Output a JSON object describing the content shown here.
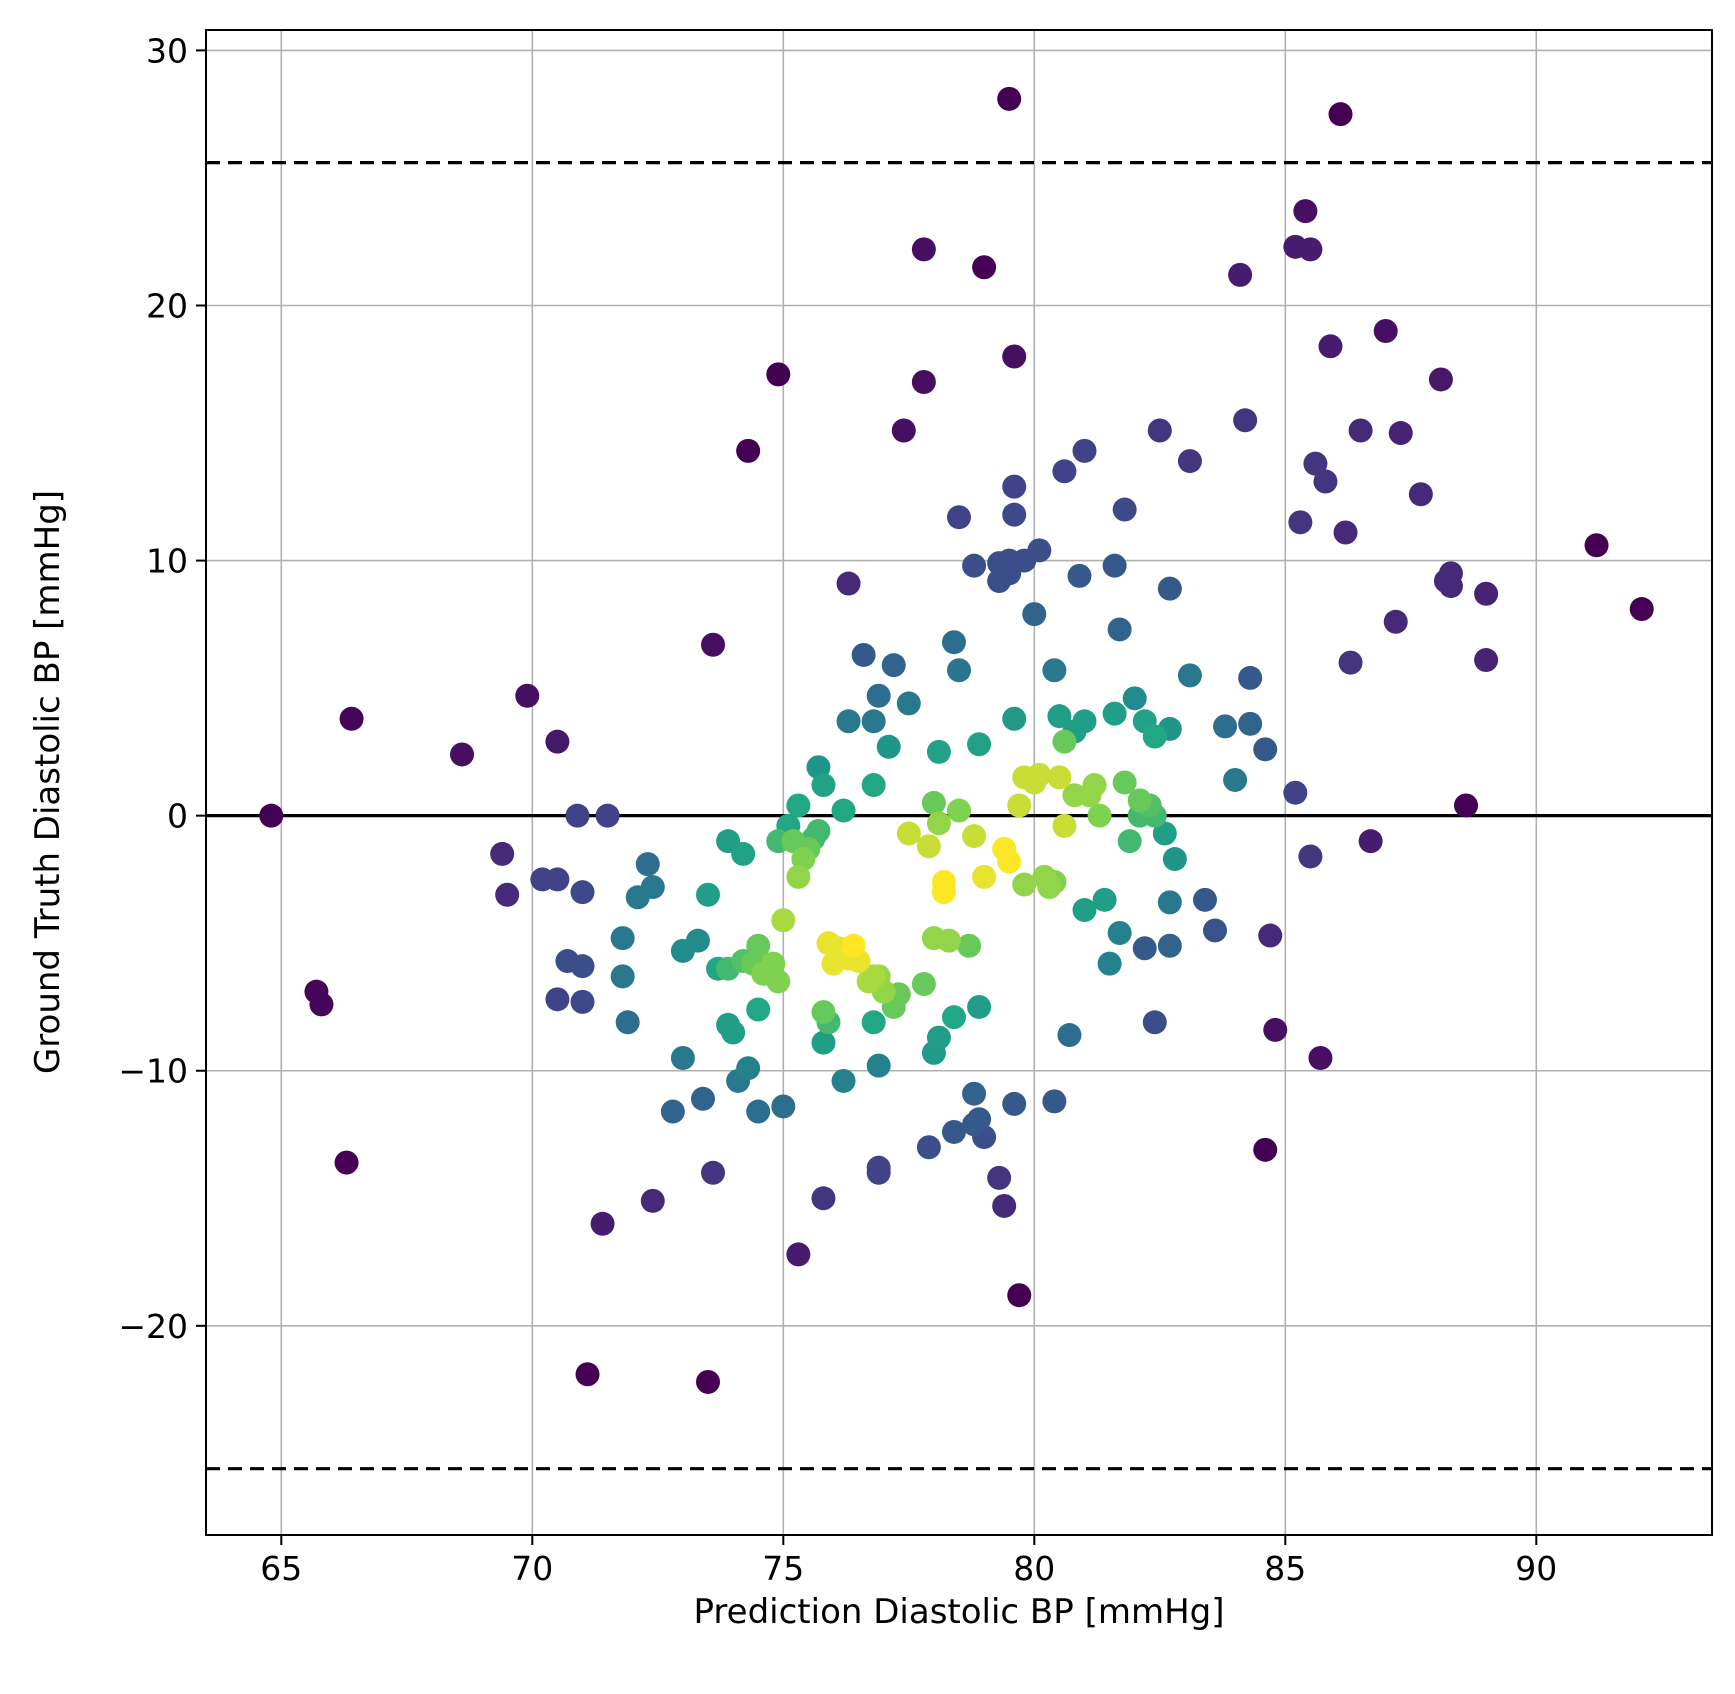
{
  "chart_data": {
    "type": "scatter",
    "title": "",
    "xlabel": "Prediction Diastolic BP [mmHg]",
    "ylabel": "Ground Truth Diastolic BP [mmHg]",
    "xlim": [
      63.5,
      93.5
    ],
    "ylim": [
      -28.2,
      30.8
    ],
    "xticks": [
      65,
      70,
      75,
      80,
      85,
      90
    ],
    "yticks": [
      -20,
      -10,
      0,
      10,
      20,
      30
    ],
    "xtick_labels": [
      "65",
      "70",
      "75",
      "80",
      "85",
      "90"
    ],
    "ytick_labels": [
      "−20",
      "−10",
      "0",
      "10",
      "20",
      "30"
    ],
    "grid": true,
    "legend": "none",
    "colormap": "viridis (density)",
    "reference_lines": [
      {
        "y": 0,
        "style": "solid",
        "color": "#000000"
      },
      {
        "y": 25.6,
        "style": "dashed",
        "color": "#000000"
      },
      {
        "y": -25.6,
        "style": "dashed",
        "color": "#000000"
      }
    ],
    "points": [
      {
        "x": 64.8,
        "y": 0.0,
        "c": 0.0
      },
      {
        "x": 65.7,
        "y": -6.9,
        "c": 0.02
      },
      {
        "x": 65.8,
        "y": -7.4,
        "c": 0.02
      },
      {
        "x": 66.3,
        "y": -13.6,
        "c": 0.0
      },
      {
        "x": 66.4,
        "y": 3.8,
        "c": 0.02
      },
      {
        "x": 68.6,
        "y": 2.4,
        "c": 0.05
      },
      {
        "x": 69.4,
        "y": -1.5,
        "c": 0.15
      },
      {
        "x": 69.5,
        "y": -3.1,
        "c": 0.15
      },
      {
        "x": 69.9,
        "y": 4.7,
        "c": 0.05
      },
      {
        "x": 70.2,
        "y": -2.5,
        "c": 0.25
      },
      {
        "x": 70.5,
        "y": -2.5,
        "c": 0.25
      },
      {
        "x": 70.5,
        "y": 2.9,
        "c": 0.08
      },
      {
        "x": 70.5,
        "y": -7.2,
        "c": 0.25
      },
      {
        "x": 70.7,
        "y": -5.7,
        "c": 0.3
      },
      {
        "x": 70.9,
        "y": 0.0,
        "c": 0.25
      },
      {
        "x": 71.0,
        "y": -3.0,
        "c": 0.28
      },
      {
        "x": 71.0,
        "y": -5.9,
        "c": 0.3
      },
      {
        "x": 71.0,
        "y": -7.3,
        "c": 0.28
      },
      {
        "x": 71.1,
        "y": -21.9,
        "c": 0.0
      },
      {
        "x": 71.4,
        "y": -16.0,
        "c": 0.1
      },
      {
        "x": 71.5,
        "y": 0.0,
        "c": 0.25
      },
      {
        "x": 71.8,
        "y": -4.8,
        "c": 0.5
      },
      {
        "x": 71.8,
        "y": -6.3,
        "c": 0.5
      },
      {
        "x": 71.9,
        "y": -8.1,
        "c": 0.45
      },
      {
        "x": 72.1,
        "y": -3.2,
        "c": 0.5
      },
      {
        "x": 72.3,
        "y": -1.9,
        "c": 0.45
      },
      {
        "x": 72.4,
        "y": -2.8,
        "c": 0.5
      },
      {
        "x": 72.4,
        "y": -15.1,
        "c": 0.15
      },
      {
        "x": 72.8,
        "y": -11.6,
        "c": 0.4
      },
      {
        "x": 73.0,
        "y": -5.3,
        "c": 0.6
      },
      {
        "x": 73.0,
        "y": -9.5,
        "c": 0.5
      },
      {
        "x": 73.3,
        "y": -4.9,
        "c": 0.6
      },
      {
        "x": 73.4,
        "y": -11.1,
        "c": 0.4
      },
      {
        "x": 73.5,
        "y": -22.2,
        "c": 0.0
      },
      {
        "x": 73.5,
        "y": -3.1,
        "c": 0.7
      },
      {
        "x": 73.6,
        "y": -14.0,
        "c": 0.2
      },
      {
        "x": 73.6,
        "y": 6.7,
        "c": 0.05
      },
      {
        "x": 73.7,
        "y": -6.0,
        "c": 0.75
      },
      {
        "x": 73.9,
        "y": -6.0,
        "c": 0.8
      },
      {
        "x": 73.9,
        "y": -1.0,
        "c": 0.7
      },
      {
        "x": 73.9,
        "y": -8.2,
        "c": 0.7
      },
      {
        "x": 74.0,
        "y": -8.5,
        "c": 0.7
      },
      {
        "x": 74.1,
        "y": -10.4,
        "c": 0.5
      },
      {
        "x": 74.2,
        "y": -5.7,
        "c": 0.82
      },
      {
        "x": 74.2,
        "y": -1.5,
        "c": 0.72
      },
      {
        "x": 74.3,
        "y": -9.9,
        "c": 0.55
      },
      {
        "x": 74.3,
        "y": 14.3,
        "c": 0.0
      },
      {
        "x": 74.4,
        "y": -5.8,
        "c": 0.85
      },
      {
        "x": 74.5,
        "y": -5.1,
        "c": 0.85
      },
      {
        "x": 74.5,
        "y": -7.6,
        "c": 0.75
      },
      {
        "x": 74.5,
        "y": -11.6,
        "c": 0.45
      },
      {
        "x": 74.6,
        "y": -6.2,
        "c": 0.88
      },
      {
        "x": 74.7,
        "y": -6.2,
        "c": 0.88
      },
      {
        "x": 74.8,
        "y": -5.8,
        "c": 0.88
      },
      {
        "x": 74.9,
        "y": -6.5,
        "c": 0.88
      },
      {
        "x": 74.9,
        "y": -1.0,
        "c": 0.8
      },
      {
        "x": 74.9,
        "y": 17.3,
        "c": 0.0
      },
      {
        "x": 75.0,
        "y": -4.1,
        "c": 0.92
      },
      {
        "x": 75.0,
        "y": -11.4,
        "c": 0.45
      },
      {
        "x": 75.1,
        "y": -0.4,
        "c": 0.75
      },
      {
        "x": 75.2,
        "y": -1.0,
        "c": 0.85
      },
      {
        "x": 75.3,
        "y": -2.4,
        "c": 0.9
      },
      {
        "x": 75.3,
        "y": 0.4,
        "c": 0.75
      },
      {
        "x": 75.3,
        "y": -17.2,
        "c": 0.1
      },
      {
        "x": 75.4,
        "y": -1.7,
        "c": 0.88
      },
      {
        "x": 75.5,
        "y": -1.3,
        "c": 0.85
      },
      {
        "x": 75.6,
        "y": -0.9,
        "c": 0.8
      },
      {
        "x": 75.7,
        "y": 1.9,
        "c": 0.65
      },
      {
        "x": 75.7,
        "y": -0.6,
        "c": 0.8
      },
      {
        "x": 75.8,
        "y": -7.7,
        "c": 0.85
      },
      {
        "x": 75.8,
        "y": -8.9,
        "c": 0.7
      },
      {
        "x": 75.8,
        "y": -15.0,
        "c": 0.2
      },
      {
        "x": 75.8,
        "y": 1.2,
        "c": 0.72
      },
      {
        "x": 75.9,
        "y": -5.0,
        "c": 0.98
      },
      {
        "x": 75.9,
        "y": -8.1,
        "c": 0.8
      },
      {
        "x": 76.0,
        "y": -5.8,
        "c": 0.98
      },
      {
        "x": 76.1,
        "y": -5.2,
        "c": 0.98
      },
      {
        "x": 76.2,
        "y": -10.4,
        "c": 0.55
      },
      {
        "x": 76.2,
        "y": 0.2,
        "c": 0.75
      },
      {
        "x": 76.3,
        "y": -5.6,
        "c": 0.98
      },
      {
        "x": 76.3,
        "y": 3.7,
        "c": 0.5
      },
      {
        "x": 76.3,
        "y": 9.1,
        "c": 0.15
      },
      {
        "x": 76.4,
        "y": -5.1,
        "c": 1.0
      },
      {
        "x": 76.5,
        "y": -5.7,
        "c": 0.98
      },
      {
        "x": 76.6,
        "y": 6.3,
        "c": 0.35
      },
      {
        "x": 76.7,
        "y": -6.5,
        "c": 0.92
      },
      {
        "x": 76.8,
        "y": 1.2,
        "c": 0.75
      },
      {
        "x": 76.8,
        "y": -8.1,
        "c": 0.75
      },
      {
        "x": 76.8,
        "y": 3.7,
        "c": 0.5
      },
      {
        "x": 76.8,
        "y": -6.3,
        "c": 0.92
      },
      {
        "x": 76.9,
        "y": -14.0,
        "c": 0.25
      },
      {
        "x": 76.9,
        "y": -13.8,
        "c": 0.25
      },
      {
        "x": 76.9,
        "y": -9.8,
        "c": 0.55
      },
      {
        "x": 76.9,
        "y": -6.3,
        "c": 0.9
      },
      {
        "x": 76.9,
        "y": 4.7,
        "c": 0.45
      },
      {
        "x": 77.0,
        "y": -6.9,
        "c": 0.9
      },
      {
        "x": 77.1,
        "y": 2.7,
        "c": 0.65
      },
      {
        "x": 77.2,
        "y": 5.9,
        "c": 0.4
      },
      {
        "x": 77.2,
        "y": -7.5,
        "c": 0.85
      },
      {
        "x": 77.3,
        "y": -7.0,
        "c": 0.85
      },
      {
        "x": 77.4,
        "y": 15.1,
        "c": 0.05
      },
      {
        "x": 77.5,
        "y": 4.4,
        "c": 0.5
      },
      {
        "x": 77.5,
        "y": -0.7,
        "c": 0.95
      },
      {
        "x": 77.8,
        "y": 22.2,
        "c": 0.05
      },
      {
        "x": 77.8,
        "y": -6.6,
        "c": 0.85
      },
      {
        "x": 77.8,
        "y": 17.0,
        "c": 0.05
      },
      {
        "x": 77.9,
        "y": -13.0,
        "c": 0.3
      },
      {
        "x": 77.9,
        "y": -1.2,
        "c": 0.95
      },
      {
        "x": 78.0,
        "y": 0.5,
        "c": 0.85
      },
      {
        "x": 78.0,
        "y": -4.8,
        "c": 0.9
      },
      {
        "x": 78.0,
        "y": -9.3,
        "c": 0.68
      },
      {
        "x": 78.1,
        "y": -0.3,
        "c": 0.9
      },
      {
        "x": 78.1,
        "y": -8.7,
        "c": 0.7
      },
      {
        "x": 78.1,
        "y": 2.5,
        "c": 0.72
      },
      {
        "x": 78.2,
        "y": -3.0,
        "c": 1.0
      },
      {
        "x": 78.2,
        "y": -2.6,
        "c": 1.0
      },
      {
        "x": 78.3,
        "y": -4.9,
        "c": 0.9
      },
      {
        "x": 78.4,
        "y": -7.9,
        "c": 0.75
      },
      {
        "x": 78.4,
        "y": 6.8,
        "c": 0.45
      },
      {
        "x": 78.4,
        "y": -12.4,
        "c": 0.35
      },
      {
        "x": 78.5,
        "y": 5.7,
        "c": 0.48
      },
      {
        "x": 78.5,
        "y": 0.2,
        "c": 0.88
      },
      {
        "x": 78.5,
        "y": 11.7,
        "c": 0.25
      },
      {
        "x": 78.7,
        "y": -5.1,
        "c": 0.85
      },
      {
        "x": 78.8,
        "y": -0.8,
        "c": 0.95
      },
      {
        "x": 78.8,
        "y": 9.8,
        "c": 0.3
      },
      {
        "x": 78.8,
        "y": -10.9,
        "c": 0.4
      },
      {
        "x": 78.8,
        "y": -12.1,
        "c": 0.35
      },
      {
        "x": 78.9,
        "y": -11.9,
        "c": 0.35
      },
      {
        "x": 78.9,
        "y": 2.8,
        "c": 0.72
      },
      {
        "x": 78.9,
        "y": -7.5,
        "c": 0.7
      },
      {
        "x": 79.0,
        "y": -12.6,
        "c": 0.3
      },
      {
        "x": 79.0,
        "y": -2.4,
        "c": 0.98
      },
      {
        "x": 79.0,
        "y": 21.5,
        "c": 0.0
      },
      {
        "x": 79.3,
        "y": -14.2,
        "c": 0.2
      },
      {
        "x": 79.3,
        "y": 9.9,
        "c": 0.3
      },
      {
        "x": 79.3,
        "y": 9.2,
        "c": 0.3
      },
      {
        "x": 79.4,
        "y": -1.3,
        "c": 1.0
      },
      {
        "x": 79.4,
        "y": -15.3,
        "c": 0.15
      },
      {
        "x": 79.5,
        "y": 28.1,
        "c": 0.0
      },
      {
        "x": 79.5,
        "y": 10.0,
        "c": 0.3
      },
      {
        "x": 79.5,
        "y": 9.5,
        "c": 0.3
      },
      {
        "x": 79.5,
        "y": -1.8,
        "c": 1.0
      },
      {
        "x": 79.6,
        "y": 12.9,
        "c": 0.25
      },
      {
        "x": 79.6,
        "y": 11.8,
        "c": 0.28
      },
      {
        "x": 79.6,
        "y": 18.0,
        "c": 0.05
      },
      {
        "x": 79.6,
        "y": -11.3,
        "c": 0.35
      },
      {
        "x": 79.6,
        "y": 3.8,
        "c": 0.68
      },
      {
        "x": 79.7,
        "y": 0.4,
        "c": 0.95
      },
      {
        "x": 79.7,
        "y": -18.8,
        "c": 0.0
      },
      {
        "x": 79.8,
        "y": 10.0,
        "c": 0.3
      },
      {
        "x": 79.8,
        "y": -2.7,
        "c": 0.9
      },
      {
        "x": 79.8,
        "y": 1.5,
        "c": 0.95
      },
      {
        "x": 80.0,
        "y": 7.9,
        "c": 0.4
      },
      {
        "x": 80.0,
        "y": 1.3,
        "c": 0.95
      },
      {
        "x": 80.1,
        "y": 10.4,
        "c": 0.3
      },
      {
        "x": 80.1,
        "y": 1.6,
        "c": 0.95
      },
      {
        "x": 80.2,
        "y": -2.4,
        "c": 0.9
      },
      {
        "x": 80.3,
        "y": -2.8,
        "c": 0.9
      },
      {
        "x": 80.4,
        "y": 5.7,
        "c": 0.5
      },
      {
        "x": 80.4,
        "y": -11.2,
        "c": 0.35
      },
      {
        "x": 80.4,
        "y": -2.6,
        "c": 0.88
      },
      {
        "x": 80.5,
        "y": 1.5,
        "c": 0.95
      },
      {
        "x": 80.5,
        "y": 3.9,
        "c": 0.7
      },
      {
        "x": 80.6,
        "y": 13.5,
        "c": 0.25
      },
      {
        "x": 80.6,
        "y": 2.9,
        "c": 0.85
      },
      {
        "x": 80.6,
        "y": -0.4,
        "c": 0.95
      },
      {
        "x": 80.7,
        "y": -8.6,
        "c": 0.45
      },
      {
        "x": 80.8,
        "y": 3.3,
        "c": 0.7
      },
      {
        "x": 80.8,
        "y": 0.8,
        "c": 0.9
      },
      {
        "x": 80.9,
        "y": 9.4,
        "c": 0.35
      },
      {
        "x": 81.0,
        "y": 3.7,
        "c": 0.7
      },
      {
        "x": 81.0,
        "y": -3.7,
        "c": 0.7
      },
      {
        "x": 81.0,
        "y": 14.3,
        "c": 0.25
      },
      {
        "x": 81.1,
        "y": 0.8,
        "c": 0.9
      },
      {
        "x": 81.2,
        "y": 1.2,
        "c": 0.9
      },
      {
        "x": 81.3,
        "y": 0.0,
        "c": 0.88
      },
      {
        "x": 81.4,
        "y": -3.3,
        "c": 0.7
      },
      {
        "x": 81.5,
        "y": -5.8,
        "c": 0.55
      },
      {
        "x": 81.6,
        "y": 4.0,
        "c": 0.7
      },
      {
        "x": 81.6,
        "y": 9.8,
        "c": 0.35
      },
      {
        "x": 81.7,
        "y": -4.6,
        "c": 0.55
      },
      {
        "x": 81.7,
        "y": 7.3,
        "c": 0.4
      },
      {
        "x": 81.8,
        "y": 12.0,
        "c": 0.28
      },
      {
        "x": 81.8,
        "y": 1.3,
        "c": 0.85
      },
      {
        "x": 81.9,
        "y": -1.0,
        "c": 0.8
      },
      {
        "x": 82.0,
        "y": 4.6,
        "c": 0.6
      },
      {
        "x": 82.1,
        "y": 0.6,
        "c": 0.85
      },
      {
        "x": 82.1,
        "y": 0.0,
        "c": 0.8
      },
      {
        "x": 82.2,
        "y": -5.2,
        "c": 0.35
      },
      {
        "x": 82.2,
        "y": 3.7,
        "c": 0.72
      },
      {
        "x": 82.3,
        "y": 0.4,
        "c": 0.82
      },
      {
        "x": 82.4,
        "y": -8.1,
        "c": 0.3
      },
      {
        "x": 82.4,
        "y": 3.1,
        "c": 0.75
      },
      {
        "x": 82.4,
        "y": 0.0,
        "c": 0.8
      },
      {
        "x": 82.5,
        "y": 15.1,
        "c": 0.2
      },
      {
        "x": 82.6,
        "y": -0.7,
        "c": 0.7
      },
      {
        "x": 82.7,
        "y": -3.4,
        "c": 0.5
      },
      {
        "x": 82.7,
        "y": 8.9,
        "c": 0.35
      },
      {
        "x": 82.7,
        "y": 3.4,
        "c": 0.65
      },
      {
        "x": 82.7,
        "y": -5.1,
        "c": 0.4
      },
      {
        "x": 82.8,
        "y": -1.7,
        "c": 0.65
      },
      {
        "x": 83.1,
        "y": 5.5,
        "c": 0.5
      },
      {
        "x": 83.1,
        "y": 13.9,
        "c": 0.2
      },
      {
        "x": 83.4,
        "y": -3.3,
        "c": 0.35
      },
      {
        "x": 83.6,
        "y": -4.5,
        "c": 0.32
      },
      {
        "x": 83.8,
        "y": 3.5,
        "c": 0.45
      },
      {
        "x": 84.0,
        "y": 1.4,
        "c": 0.5
      },
      {
        "x": 84.1,
        "y": 21.2,
        "c": 0.1
      },
      {
        "x": 84.2,
        "y": 15.5,
        "c": 0.2
      },
      {
        "x": 84.3,
        "y": 5.4,
        "c": 0.35
      },
      {
        "x": 84.3,
        "y": 3.6,
        "c": 0.4
      },
      {
        "x": 84.6,
        "y": 2.6,
        "c": 0.35
      },
      {
        "x": 84.6,
        "y": -13.1,
        "c": 0.0
      },
      {
        "x": 84.7,
        "y": -4.7,
        "c": 0.15
      },
      {
        "x": 84.8,
        "y": -8.4,
        "c": 0.05
      },
      {
        "x": 85.2,
        "y": 0.9,
        "c": 0.25
      },
      {
        "x": 85.2,
        "y": 22.3,
        "c": 0.1
      },
      {
        "x": 85.3,
        "y": 11.5,
        "c": 0.2
      },
      {
        "x": 85.4,
        "y": 23.7,
        "c": 0.05
      },
      {
        "x": 85.5,
        "y": -1.6,
        "c": 0.2
      },
      {
        "x": 85.5,
        "y": 22.2,
        "c": 0.1
      },
      {
        "x": 85.6,
        "y": 13.8,
        "c": 0.2
      },
      {
        "x": 85.7,
        "y": -9.5,
        "c": 0.05
      },
      {
        "x": 85.8,
        "y": 13.1,
        "c": 0.2
      },
      {
        "x": 85.9,
        "y": 18.4,
        "c": 0.1
      },
      {
        "x": 86.1,
        "y": 27.5,
        "c": 0.0
      },
      {
        "x": 86.2,
        "y": 11.1,
        "c": 0.15
      },
      {
        "x": 86.3,
        "y": 6.0,
        "c": 0.2
      },
      {
        "x": 86.5,
        "y": 15.1,
        "c": 0.15
      },
      {
        "x": 86.7,
        "y": -1.0,
        "c": 0.1
      },
      {
        "x": 87.0,
        "y": 19.0,
        "c": 0.05
      },
      {
        "x": 87.2,
        "y": 7.6,
        "c": 0.15
      },
      {
        "x": 87.3,
        "y": 15.0,
        "c": 0.12
      },
      {
        "x": 87.7,
        "y": 12.6,
        "c": 0.15
      },
      {
        "x": 88.1,
        "y": 17.1,
        "c": 0.08
      },
      {
        "x": 88.2,
        "y": 9.2,
        "c": 0.15
      },
      {
        "x": 88.3,
        "y": 9.5,
        "c": 0.15
      },
      {
        "x": 88.3,
        "y": 9.0,
        "c": 0.15
      },
      {
        "x": 88.6,
        "y": 0.4,
        "c": 0.0
      },
      {
        "x": 89.0,
        "y": 8.7,
        "c": 0.12
      },
      {
        "x": 89.0,
        "y": 6.1,
        "c": 0.12
      },
      {
        "x": 91.2,
        "y": 10.6,
        "c": 0.0
      },
      {
        "x": 92.1,
        "y": 8.1,
        "c": 0.0
      }
    ]
  }
}
